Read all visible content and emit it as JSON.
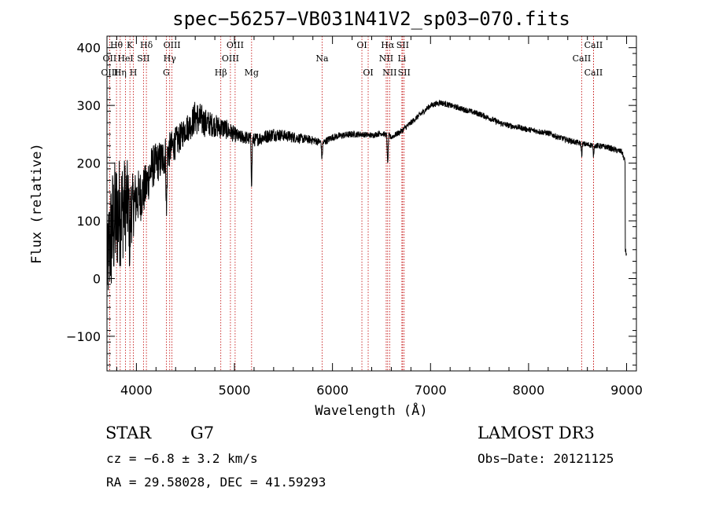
{
  "chart_data": {
    "type": "line",
    "title": "spec−56257−VB031N41V2_sp03−070.fits",
    "xlabel": "Wavelength (Å)",
    "ylabel": "Flux (relative)",
    "xlim": [
      3700,
      9100
    ],
    "ylim": [
      -160,
      420
    ],
    "xticks": [
      4000,
      5000,
      6000,
      7000,
      8000,
      9000
    ],
    "yticks": [
      -100,
      0,
      100,
      200,
      300,
      400
    ],
    "ytick_labels": [
      "−100",
      "0",
      "100",
      "200",
      "300",
      "400"
    ],
    "line_color": "#000000",
    "marker_color": "#c00000",
    "spectrum_anchor": {
      "x": [
        3700,
        3720,
        3760,
        3800,
        3850,
        3900,
        3950,
        4000,
        4050,
        4100,
        4150,
        4200,
        4250,
        4300,
        4350,
        4400,
        4450,
        4500,
        4550,
        4600,
        4650,
        4700,
        4750,
        4800,
        4850,
        4900,
        4950,
        5000,
        5050,
        5100,
        5200,
        5300,
        5400,
        5500,
        5600,
        5700,
        5800,
        5900,
        6000,
        6100,
        6200,
        6300,
        6400,
        6500,
        6560,
        6600,
        6650,
        6700,
        6800,
        6900,
        7000,
        7100,
        7200,
        7300,
        7400,
        7500,
        7600,
        7700,
        7800,
        7900,
        8000,
        8100,
        8200,
        8300,
        8400,
        8500,
        8600,
        8700,
        8800,
        8900,
        8950,
        8980,
        9000
      ],
      "y": [
        10,
        50,
        90,
        110,
        120,
        130,
        120,
        140,
        145,
        160,
        190,
        200,
        205,
        215,
        225,
        235,
        245,
        260,
        265,
        280,
        275,
        270,
        268,
        265,
        262,
        260,
        255,
        250,
        245,
        245,
        240,
        245,
        250,
        248,
        245,
        242,
        240,
        235,
        245,
        248,
        250,
        250,
        248,
        252,
        248,
        245,
        250,
        255,
        270,
        285,
        300,
        305,
        300,
        295,
        290,
        285,
        278,
        270,
        265,
        262,
        258,
        255,
        252,
        245,
        240,
        235,
        232,
        230,
        228,
        222,
        220,
        205,
        190
      ],
      "noise_amp": [
        60,
        100,
        110,
        105,
        95,
        80,
        60,
        50,
        45,
        40,
        40,
        35,
        35,
        35,
        30,
        28,
        25,
        25,
        25,
        30,
        30,
        25,
        22,
        20,
        20,
        18,
        16,
        14,
        12,
        12,
        12,
        12,
        12,
        10,
        10,
        8,
        7,
        7,
        6,
        6,
        6,
        5,
        5,
        5,
        5,
        5,
        5,
        5,
        5,
        5,
        5,
        5,
        5,
        5,
        5,
        5,
        5,
        5,
        5,
        5,
        5,
        5,
        5,
        5,
        5,
        5,
        5,
        5,
        5,
        5,
        5,
        5,
        5
      ]
    },
    "absorption_features": [
      {
        "x": 3933,
        "depth": 80
      },
      {
        "x": 4307,
        "depth": 110
      },
      {
        "x": 5175,
        "depth": 80
      },
      {
        "x": 5893,
        "depth": 30
      },
      {
        "x": 6563,
        "depth": 55
      },
      {
        "x": 8542,
        "depth": 20
      },
      {
        "x": 8662,
        "depth": 18
      }
    ],
    "lines": [
      {
        "label": "Hθ",
        "x": 3797,
        "row": 0
      },
      {
        "label": "OII",
        "x": 3727,
        "row": 1
      },
      {
        "label": "OIII",
        "x": 3727,
        "row": 2
      },
      {
        "label": "Hη",
        "x": 3835,
        "row": 2
      },
      {
        "label": "HeI",
        "x": 3889,
        "row": 1
      },
      {
        "label": "K",
        "x": 3934,
        "row": 0
      },
      {
        "label": "H",
        "x": 3969,
        "row": 2
      },
      {
        "label": "SII",
        "x": 4072,
        "row": 1
      },
      {
        "label": "Hδ",
        "x": 4102,
        "row": 0
      },
      {
        "label": "OIII",
        "x": 4363,
        "row": 0
      },
      {
        "label": "Hγ",
        "x": 4340,
        "row": 1
      },
      {
        "label": "G",
        "x": 4305,
        "row": 2
      },
      {
        "label": "Hβ",
        "x": 4861,
        "row": 2
      },
      {
        "label": "OIII",
        "x": 5007,
        "row": 0
      },
      {
        "label": "OIII",
        "x": 4959,
        "row": 1
      },
      {
        "label": "Mg",
        "x": 5175,
        "row": 2
      },
      {
        "label": "Na",
        "x": 5894,
        "row": 1
      },
      {
        "label": "OI",
        "x": 6300,
        "row": 0
      },
      {
        "label": "OI",
        "x": 6364,
        "row": 2
      },
      {
        "label": "Hα",
        "x": 6563,
        "row": 0
      },
      {
        "label": "SII",
        "x": 6716,
        "row": 0
      },
      {
        "label": "NII",
        "x": 6548,
        "row": 1
      },
      {
        "label": "Li",
        "x": 6708,
        "row": 1
      },
      {
        "label": "NII",
        "x": 6583,
        "row": 2
      },
      {
        "label": "SII",
        "x": 6731,
        "row": 2
      },
      {
        "label": "CaII",
        "x": 8662,
        "row": 0
      },
      {
        "label": "CaII",
        "x": 8542,
        "row": 1
      },
      {
        "label": "CaII",
        "x": 8662,
        "row": 2
      }
    ]
  },
  "info": {
    "class": "STAR",
    "subclass": "G7",
    "redshift": "cz = −6.8 ± 3.2 km/s",
    "coords": "RA =  29.58028, DEC =  41.59293",
    "survey": "LAMOST DR3",
    "obs_date": "Obs−Date: 20121125"
  }
}
